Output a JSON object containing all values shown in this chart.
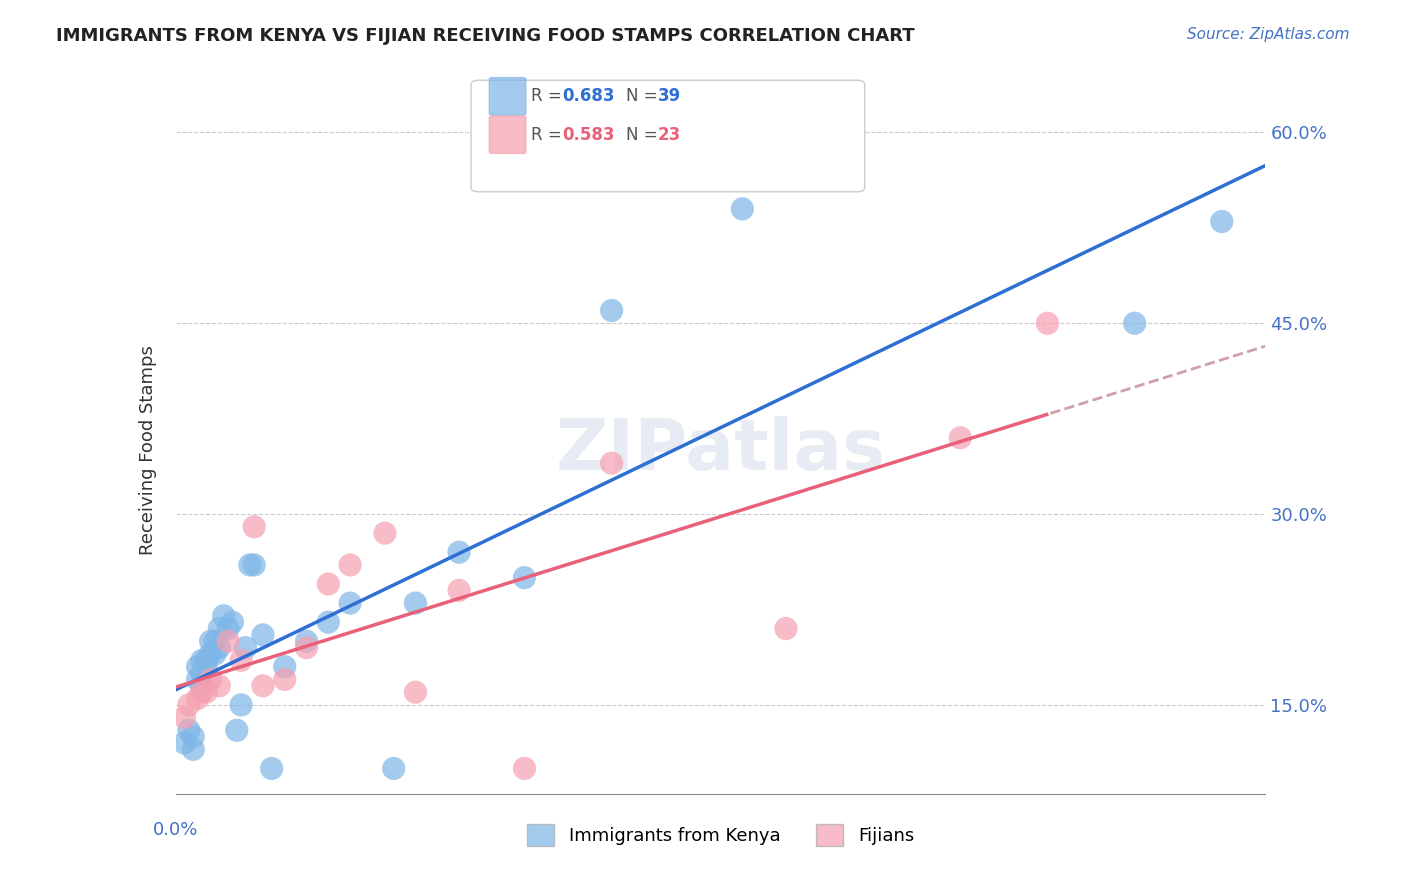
{
  "title": "IMMIGRANTS FROM KENYA VS FIJIAN RECEIVING FOOD STAMPS CORRELATION CHART",
  "source": "Source: ZipAtlas.com",
  "ylabel": "Receiving Food Stamps",
  "xlim": [
    0.0,
    0.25
  ],
  "ylim": [
    0.08,
    0.62
  ],
  "yticks": [
    0.15,
    0.3,
    0.45,
    0.6
  ],
  "xticks": [
    0.0,
    0.05,
    0.1,
    0.15,
    0.2,
    0.25
  ],
  "ytick_labels": [
    "15.0%",
    "30.0%",
    "45.0%",
    "60.0%"
  ],
  "kenya_color": "#7EB6E8",
  "fijian_color": "#F4A0B0",
  "kenya_line_color": "#2E6FD4",
  "fijian_line_color": "#E8607A",
  "fijian_line_dashed_color": "#D0A0A8",
  "kenya_R": 0.683,
  "kenya_N": 39,
  "fijian_R": 0.583,
  "fijian_N": 23,
  "watermark": "ZIPatlas",
  "kenya_x": [
    0.002,
    0.003,
    0.004,
    0.004,
    0.005,
    0.005,
    0.006,
    0.006,
    0.006,
    0.007,
    0.007,
    0.008,
    0.008,
    0.009,
    0.009,
    0.01,
    0.01,
    0.011,
    0.012,
    0.013,
    0.014,
    0.015,
    0.016,
    0.017,
    0.018,
    0.02,
    0.022,
    0.025,
    0.03,
    0.035,
    0.04,
    0.05,
    0.055,
    0.065,
    0.08,
    0.1,
    0.13,
    0.22,
    0.24
  ],
  "kenya_y": [
    0.12,
    0.13,
    0.125,
    0.115,
    0.17,
    0.18,
    0.185,
    0.175,
    0.165,
    0.185,
    0.18,
    0.19,
    0.2,
    0.2,
    0.19,
    0.195,
    0.21,
    0.22,
    0.21,
    0.215,
    0.13,
    0.15,
    0.195,
    0.26,
    0.26,
    0.205,
    0.1,
    0.18,
    0.2,
    0.215,
    0.23,
    0.1,
    0.23,
    0.27,
    0.25,
    0.46,
    0.54,
    0.45,
    0.53
  ],
  "fijian_x": [
    0.002,
    0.003,
    0.005,
    0.006,
    0.007,
    0.008,
    0.01,
    0.012,
    0.015,
    0.018,
    0.02,
    0.025,
    0.03,
    0.035,
    0.04,
    0.048,
    0.055,
    0.065,
    0.08,
    0.1,
    0.14,
    0.18,
    0.2
  ],
  "fijian_y": [
    0.14,
    0.15,
    0.155,
    0.16,
    0.16,
    0.17,
    0.165,
    0.2,
    0.185,
    0.29,
    0.165,
    0.17,
    0.195,
    0.245,
    0.26,
    0.285,
    0.16,
    0.24,
    0.1,
    0.34,
    0.21,
    0.36,
    0.45
  ]
}
